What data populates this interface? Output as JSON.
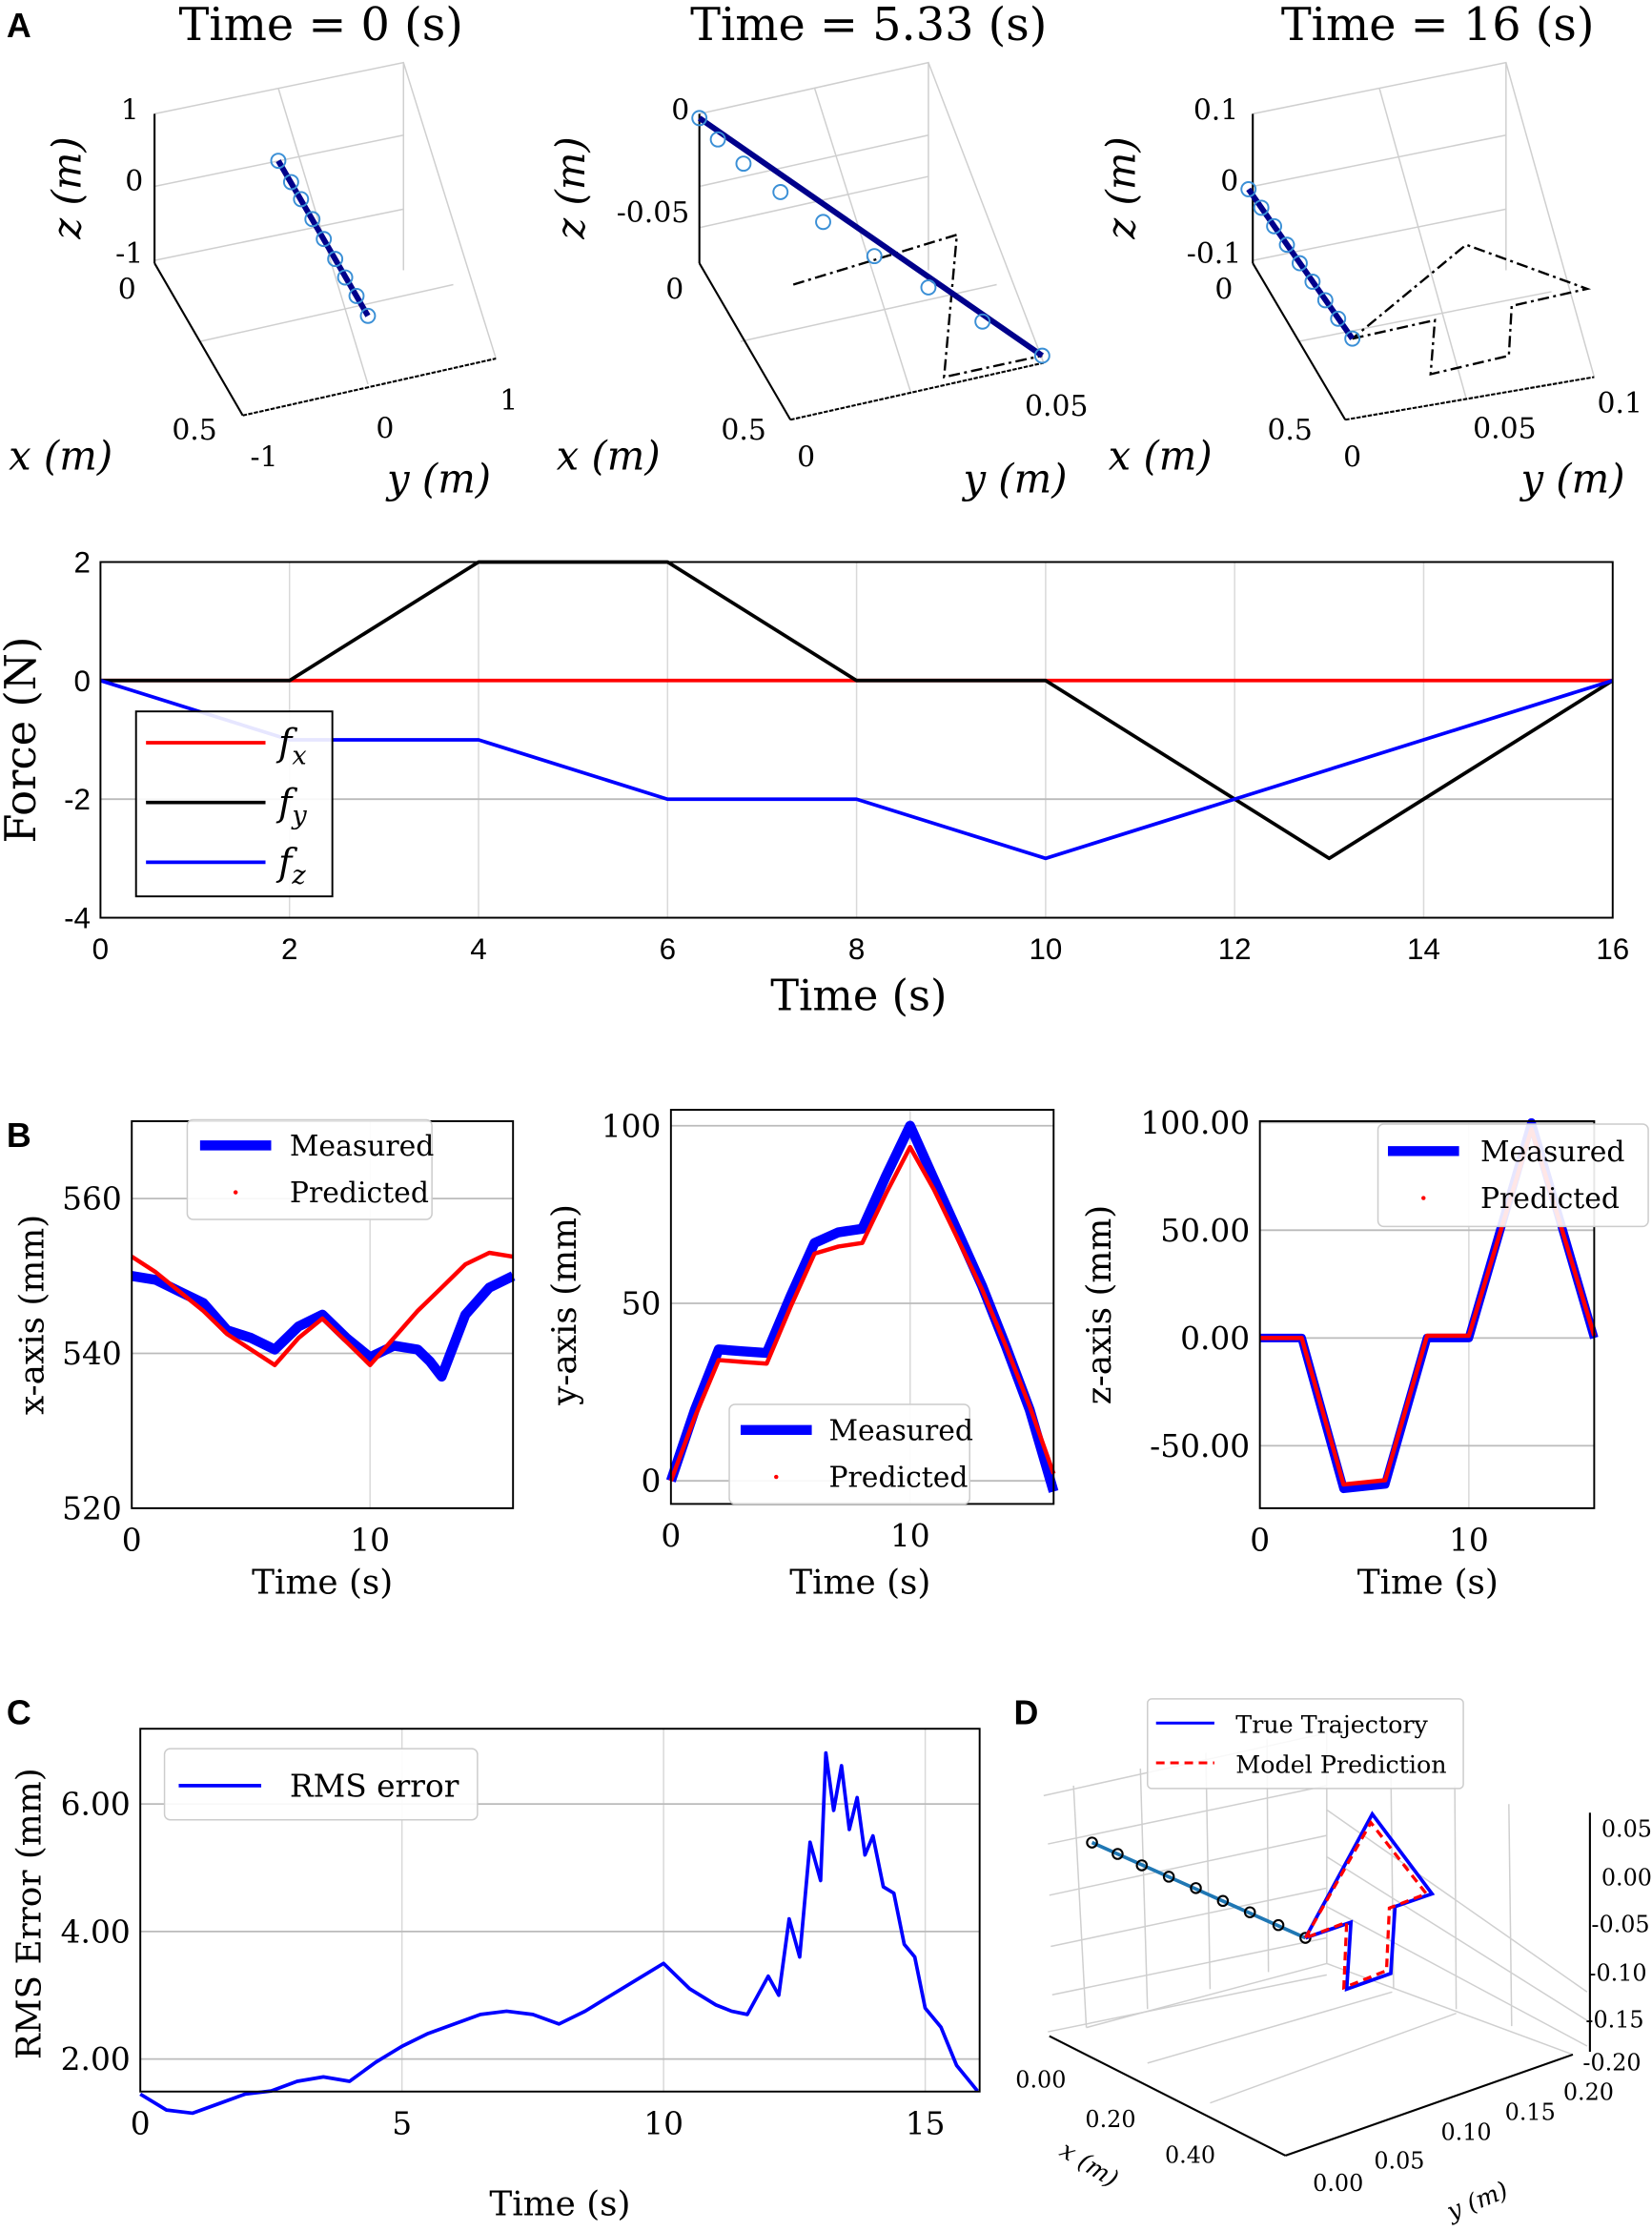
{
  "panel_labels": {
    "a": "A",
    "b": "B",
    "c": "C",
    "d": "D"
  },
  "panel_a": {
    "snapshots": [
      {
        "title": "Time = 0 (s)",
        "z_ticks": [
          "1",
          "0",
          "-1"
        ],
        "x_ticks": [
          "0",
          "0.5"
        ],
        "y_ticks": [
          "-1",
          "0",
          "1"
        ],
        "zlabel": "z (m)",
        "xlabel": "x (m)",
        "ylabel": "y (m)"
      },
      {
        "title": "Time = 5.33 (s)",
        "z_ticks": [
          "0",
          "-0.05"
        ],
        "x_ticks": [
          "0",
          "0.5"
        ],
        "y_ticks": [
          "0",
          "0.05"
        ],
        "zlabel": "z (m)",
        "xlabel": "x (m)",
        "ylabel": "y (m)"
      },
      {
        "title": "Time = 16 (s)",
        "z_ticks": [
          "0.1",
          "0",
          "-0.1"
        ],
        "x_ticks": [
          "0",
          "0.5"
        ],
        "y_ticks": [
          "0",
          "0.05",
          "0.1"
        ],
        "zlabel": "z (m)",
        "xlabel": "x (m)",
        "ylabel": "y (m)"
      }
    ]
  },
  "chart_data": [
    {
      "type": "line",
      "title": "",
      "xlabel": "Time (s)",
      "ylabel": "Force (N)",
      "xlim": [
        0,
        16
      ],
      "ylim": [
        -4,
        2
      ],
      "grid": true,
      "legend": "left",
      "xticks": [
        0,
        2,
        4,
        6,
        8,
        10,
        12,
        14,
        16
      ],
      "xtick_labels": [
        "0",
        "2",
        "4",
        "6",
        "8",
        "10",
        "12",
        "14",
        "16"
      ],
      "yticks": [
        -4,
        -2,
        0,
        2
      ],
      "ytick_labels": [
        "-4",
        "-2",
        "0",
        "2"
      ],
      "series": [
        {
          "name": "f_x",
          "color": "#ff0000",
          "x": [
            0,
            16
          ],
          "y": [
            0,
            0
          ]
        },
        {
          "name": "f_y",
          "color": "#000000",
          "x": [
            0,
            2,
            4,
            6,
            8,
            10,
            13,
            16
          ],
          "y": [
            0,
            0,
            2,
            2,
            0,
            0,
            -3,
            0
          ]
        },
        {
          "name": "f_z",
          "color": "#0000ff",
          "x": [
            0,
            2,
            4,
            6,
            8,
            10,
            16
          ],
          "y": [
            0,
            -1,
            -1,
            -2,
            -2,
            -3,
            0
          ]
        }
      ]
    },
    {
      "type": "line",
      "title": "",
      "xlabel": "Time (s)",
      "ylabel": "x-axis (mm)",
      "xlim": [
        0,
        16
      ],
      "ylim": [
        520,
        570
      ],
      "grid": true,
      "legend": "top",
      "xticks": [
        0,
        10
      ],
      "xtick_labels": [
        "0",
        "10"
      ],
      "yticks": [
        520,
        540,
        560
      ],
      "ytick_labels": [
        "520",
        "540",
        "560"
      ],
      "series": [
        {
          "name": "Measured",
          "color": "#0000ff",
          "x": [
            0,
            1,
            2,
            3,
            4,
            5,
            6,
            7,
            8,
            9,
            10,
            11,
            12,
            12.5,
            13,
            13.5,
            14,
            15,
            16
          ],
          "y": [
            550,
            549.5,
            548,
            546.5,
            543,
            542,
            540.5,
            543.5,
            545,
            542,
            539.5,
            541,
            540.5,
            539,
            537,
            541,
            545,
            548.5,
            550
          ]
        },
        {
          "name": "Predicted",
          "color": "#ff0000",
          "x": [
            0,
            1,
            2,
            3,
            4,
            5,
            6,
            7,
            8,
            9,
            10,
            11,
            12,
            13,
            14,
            15,
            16
          ],
          "y": [
            552.5,
            550.5,
            548,
            545.5,
            542.5,
            540.5,
            538.5,
            542,
            544.5,
            541.5,
            538.5,
            542,
            545.5,
            548.5,
            551.5,
            553,
            552.5
          ]
        }
      ]
    },
    {
      "type": "line",
      "title": "",
      "xlabel": "Time (s)",
      "ylabel": "y-axis (mm)",
      "xlim": [
        0,
        16
      ],
      "ylim": [
        -6.5,
        104.5
      ],
      "grid": true,
      "legend": "bottom",
      "xticks": [
        0,
        10
      ],
      "xtick_labels": [
        "0",
        "10"
      ],
      "yticks": [
        0,
        50,
        100
      ],
      "ytick_labels": [
        "0",
        "50",
        "100"
      ],
      "series": [
        {
          "name": "Measured",
          "color": "#0000ff",
          "x": [
            0,
            1,
            2,
            3,
            4,
            5,
            6,
            7,
            8,
            9,
            10,
            11,
            12,
            13,
            14,
            15,
            16
          ],
          "y": [
            0,
            20,
            37,
            36.5,
            36,
            52,
            67,
            70,
            71,
            86,
            100,
            85,
            70,
            55,
            38,
            20,
            -3
          ]
        },
        {
          "name": "Predicted",
          "color": "#ff0000",
          "x": [
            0,
            1,
            2,
            3,
            4,
            5,
            6,
            7,
            8,
            9,
            10,
            11,
            12,
            13,
            14,
            15,
            16
          ],
          "y": [
            0,
            18,
            34,
            33.5,
            33,
            49,
            64,
            66,
            67,
            81,
            94,
            82,
            68,
            54,
            38,
            21,
            2
          ]
        }
      ]
    },
    {
      "type": "line",
      "title": "",
      "xlabel": "Time (s)",
      "ylabel": "z-axis (mm)",
      "xlim": [
        0,
        16
      ],
      "ylim": [
        -79,
        100.6
      ],
      "grid": true,
      "legend": "top-right",
      "xticks": [
        0,
        10
      ],
      "xtick_labels": [
        "0",
        "10"
      ],
      "yticks": [
        -50,
        0,
        50,
        100
      ],
      "ytick_labels": [
        "-50.00",
        "0.00",
        "50.00",
        "100.00"
      ],
      "series": [
        {
          "name": "Measured",
          "color": "#0000ff",
          "x": [
            0,
            2,
            4,
            6,
            8,
            10,
            13,
            16
          ],
          "y": [
            0,
            0,
            -70,
            -68,
            0,
            0,
            100,
            0
          ]
        },
        {
          "name": "Predicted",
          "color": "#ff0000",
          "x": [
            0,
            2,
            4,
            6,
            8,
            10,
            13,
            16
          ],
          "y": [
            0,
            0,
            -68,
            -66,
            1,
            1,
            97,
            1
          ]
        }
      ]
    },
    {
      "type": "line",
      "title": "",
      "xlabel": "Time (s)",
      "ylabel": "RMS Error (mm)",
      "xlim": [
        0,
        16.04
      ],
      "ylim": [
        1.49,
        7.18
      ],
      "grid": true,
      "legend": "top-left",
      "xticks": [
        0,
        5,
        10,
        15
      ],
      "xtick_labels": [
        "0",
        "5",
        "10",
        "15"
      ],
      "yticks": [
        2,
        4,
        6
      ],
      "ytick_labels": [
        "2.00",
        "4.00",
        "6.00"
      ],
      "series": [
        {
          "name": "RMS error",
          "color": "#0000ff",
          "x": [
            0,
            0.5,
            1,
            1.5,
            2,
            2.5,
            3,
            3.5,
            4,
            4.5,
            5,
            5.5,
            6,
            6.5,
            7,
            7.5,
            8,
            8.5,
            9,
            9.5,
            10,
            10.5,
            11,
            11.3,
            11.6,
            12,
            12.2,
            12.4,
            12.6,
            12.8,
            13,
            13.1,
            13.25,
            13.4,
            13.55,
            13.7,
            13.85,
            14,
            14.2,
            14.4,
            14.6,
            14.8,
            15,
            15.3,
            15.6,
            16
          ],
          "y": [
            1.45,
            1.2,
            1.15,
            1.3,
            1.45,
            1.5,
            1.65,
            1.72,
            1.65,
            1.95,
            2.2,
            2.4,
            2.55,
            2.7,
            2.75,
            2.7,
            2.55,
            2.75,
            3.0,
            3.25,
            3.5,
            3.1,
            2.85,
            2.75,
            2.7,
            3.3,
            3.0,
            4.2,
            3.6,
            5.4,
            4.8,
            6.8,
            5.9,
            6.6,
            5.6,
            6.1,
            5.2,
            5.5,
            4.7,
            4.6,
            3.8,
            3.6,
            2.8,
            2.5,
            1.9,
            1.5
          ]
        }
      ]
    },
    {
      "type": "line3d",
      "title": "",
      "xlabel": "x (m)",
      "ylabel": "y (m)",
      "zlabel": "",
      "legend": "top",
      "xtick_labels": [
        "0.00",
        "0.20",
        "0.40"
      ],
      "ytick_labels": [
        "0.00",
        "0.05",
        "0.10",
        "0.15",
        "0.20"
      ],
      "ztick_labels": [
        "0.05",
        "0.00",
        "-0.05",
        "-0.10",
        "-0.15",
        "-0.20"
      ],
      "series": [
        {
          "name": "True Trajectory",
          "color": "#0000ff"
        },
        {
          "name": "Model Prediction",
          "color": "#ff0000"
        }
      ]
    }
  ]
}
